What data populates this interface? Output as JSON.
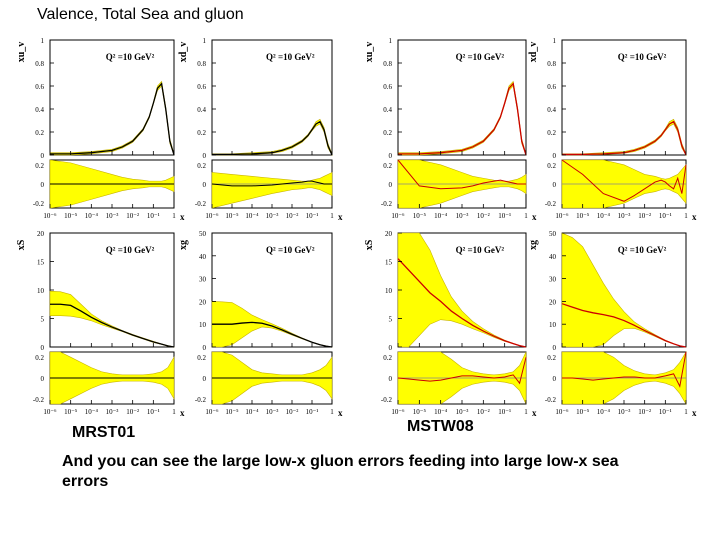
{
  "slide": {
    "title": "Valence, Total Sea and gluon",
    "label_left": "MRST01",
    "label_right": "MSTW08",
    "caption": "And you can see the large low-x gluon errors feeding into large low-x sea errors"
  },
  "colors": {
    "band": "#ffff00",
    "central_black": "#000000",
    "central_red": "#cc0000",
    "grid": "#dddddd"
  },
  "chart_data": [
    {
      "type": "line",
      "set": "MRST01",
      "panel": "xu_v",
      "ylabel": "xu_v",
      "q2_label": "Q² =10 GeV²",
      "yticks_top": [
        "0",
        "0.2",
        "0.4",
        "0.6",
        "0.8",
        "1"
      ],
      "ylim_top": [
        0,
        1
      ],
      "yticks_bottom": [
        "-0.2",
        "0",
        "0.2"
      ],
      "ylim_bottom": [
        -0.25,
        0.25
      ],
      "xticks": [
        "10⁻⁶",
        "10⁻⁵",
        "10⁻⁴",
        "10⁻³",
        "10⁻²",
        "10⁻¹",
        "1"
      ],
      "xlabel": "x",
      "xlim": [
        -6,
        0
      ],
      "x": [
        -6,
        -5,
        -4,
        -3,
        -2.5,
        -2,
        -1.5,
        -1.2,
        -1,
        -0.8,
        -0.6,
        -0.4,
        -0.2,
        0
      ],
      "y": [
        0.01,
        0.01,
        0.02,
        0.04,
        0.07,
        0.12,
        0.22,
        0.33,
        0.45,
        0.58,
        0.62,
        0.4,
        0.12,
        0.0
      ],
      "band_up": [
        0.02,
        0.02,
        0.03,
        0.05,
        0.08,
        0.13,
        0.23,
        0.34,
        0.46,
        0.6,
        0.64,
        0.42,
        0.14,
        0.01
      ],
      "band_dn": [
        0.0,
        0.0,
        0.01,
        0.03,
        0.06,
        0.11,
        0.21,
        0.32,
        0.44,
        0.56,
        0.6,
        0.38,
        0.1,
        0.0
      ],
      "ratio_up": [
        0.25,
        0.22,
        0.16,
        0.1,
        0.07,
        0.05,
        0.04,
        0.03,
        0.03,
        0.03,
        0.03,
        0.04,
        0.06,
        0.08
      ],
      "ratio_dn": [
        -0.25,
        -0.22,
        -0.16,
        -0.1,
        -0.07,
        -0.05,
        -0.04,
        -0.03,
        -0.03,
        -0.03,
        -0.03,
        -0.04,
        -0.06,
        -0.08
      ],
      "ratio_central": [
        0,
        0,
        0,
        0,
        0,
        0,
        0,
        0,
        0,
        0,
        0,
        0,
        0,
        0
      ]
    },
    {
      "type": "line",
      "set": "MRST01",
      "panel": "xd_v",
      "ylabel": "xd_v",
      "q2_label": "Q² =10 GeV²",
      "yticks_top": [
        "0",
        "0.2",
        "0.4",
        "0.6",
        "0.8",
        "1"
      ],
      "ylim_top": [
        0,
        1
      ],
      "yticks_bottom": [
        "-0.2",
        "0",
        "0.2"
      ],
      "ylim_bottom": [
        -0.25,
        0.25
      ],
      "xticks": [
        "10⁻⁶",
        "10⁻⁵",
        "10⁻⁴",
        "10⁻³",
        "10⁻²",
        "10⁻¹",
        "1"
      ],
      "xlabel": "x",
      "xlim": [
        -6,
        0
      ],
      "x": [
        -6,
        -5,
        -4,
        -3,
        -2.5,
        -2,
        -1.5,
        -1.2,
        -1,
        -0.8,
        -0.6,
        -0.4,
        -0.2,
        0
      ],
      "y": [
        0.005,
        0.005,
        0.01,
        0.02,
        0.04,
        0.07,
        0.12,
        0.17,
        0.22,
        0.27,
        0.29,
        0.22,
        0.08,
        0.0
      ],
      "band_up": [
        0.01,
        0.01,
        0.02,
        0.03,
        0.05,
        0.08,
        0.13,
        0.18,
        0.23,
        0.29,
        0.31,
        0.24,
        0.1,
        0.01
      ],
      "band_dn": [
        0.0,
        0.0,
        0.005,
        0.015,
        0.03,
        0.06,
        0.11,
        0.16,
        0.21,
        0.25,
        0.27,
        0.2,
        0.06,
        0.0
      ],
      "ratio_up": [
        0.12,
        0.1,
        0.08,
        0.06,
        0.05,
        0.04,
        0.03,
        0.03,
        0.04,
        0.05,
        0.06,
        0.08,
        0.1,
        0.12
      ],
      "ratio_dn": [
        -0.25,
        -0.2,
        -0.15,
        -0.1,
        -0.08,
        -0.06,
        -0.05,
        -0.04,
        -0.04,
        -0.05,
        -0.06,
        -0.08,
        -0.1,
        -0.12
      ],
      "ratio_central": [
        0,
        -0.02,
        -0.02,
        -0.01,
        0,
        0.01,
        0.02,
        0.03,
        0.03,
        0.02,
        0.01,
        0,
        0,
        0
      ]
    },
    {
      "type": "line",
      "set": "MSTW08",
      "panel": "xu_v",
      "ylabel": "xu_v",
      "q2_label": "Q² =10 GeV²",
      "yticks_top": [
        "0",
        "0.2",
        "0.4",
        "0.6",
        "0.8",
        "1"
      ],
      "ylim_top": [
        0,
        1
      ],
      "yticks_bottom": [
        "-0.2",
        "0",
        "0.2"
      ],
      "ylim_bottom": [
        -0.25,
        0.25
      ],
      "xticks": [
        "10⁻⁶",
        "10⁻⁵",
        "10⁻⁴",
        "10⁻³",
        "10⁻²",
        "10⁻¹",
        "1"
      ],
      "xlabel": "x",
      "xlim": [
        -6,
        0
      ],
      "x": [
        -6,
        -5,
        -4,
        -3,
        -2.5,
        -2,
        -1.5,
        -1.2,
        -1,
        -0.8,
        -0.6,
        -0.4,
        -0.2,
        0
      ],
      "y": [
        0.01,
        0.01,
        0.02,
        0.04,
        0.07,
        0.12,
        0.22,
        0.33,
        0.45,
        0.58,
        0.62,
        0.4,
        0.12,
        0.0
      ],
      "band_up": [
        0.02,
        0.02,
        0.03,
        0.05,
        0.08,
        0.13,
        0.23,
        0.34,
        0.46,
        0.6,
        0.64,
        0.42,
        0.14,
        0.01
      ],
      "band_dn": [
        0.0,
        0.0,
        0.01,
        0.03,
        0.06,
        0.11,
        0.21,
        0.32,
        0.44,
        0.56,
        0.6,
        0.38,
        0.1,
        0.0
      ],
      "ratio_up": [
        0.25,
        0.25,
        0.2,
        0.12,
        0.08,
        0.06,
        0.04,
        0.03,
        0.03,
        0.03,
        0.04,
        0.05,
        0.07,
        0.1
      ],
      "ratio_dn": [
        -0.25,
        -0.25,
        -0.2,
        -0.12,
        -0.08,
        -0.06,
        -0.04,
        -0.03,
        -0.03,
        -0.03,
        -0.04,
        -0.05,
        -0.07,
        -0.1
      ],
      "ratio_central": [
        0.25,
        -0.02,
        -0.05,
        -0.04,
        -0.02,
        0.01,
        0.03,
        0.04,
        0.03,
        0.02,
        0.01,
        0,
        0,
        0
      ]
    },
    {
      "type": "line",
      "set": "MSTW08",
      "panel": "xd_v",
      "ylabel": "xd_v",
      "q2_label": "Q² =10 GeV²",
      "yticks_top": [
        "0",
        "0.2",
        "0.4",
        "0.6",
        "0.8",
        "1"
      ],
      "ylim_top": [
        0,
        1
      ],
      "yticks_bottom": [
        "-0.2",
        "0",
        "0.2"
      ],
      "ylim_bottom": [
        -0.25,
        0.25
      ],
      "xticks": [
        "10⁻⁶",
        "10⁻⁵",
        "10⁻⁴",
        "10⁻³",
        "10⁻²",
        "10⁻¹",
        "1"
      ],
      "xlabel": "x",
      "xlim": [
        -6,
        0
      ],
      "x": [
        -6,
        -5,
        -4,
        -3,
        -2.5,
        -2,
        -1.5,
        -1.2,
        -1,
        -0.8,
        -0.6,
        -0.4,
        -0.2,
        0
      ],
      "y": [
        0.005,
        0.005,
        0.01,
        0.02,
        0.04,
        0.07,
        0.12,
        0.17,
        0.22,
        0.27,
        0.29,
        0.22,
        0.08,
        0.0
      ],
      "band_up": [
        0.01,
        0.01,
        0.02,
        0.03,
        0.05,
        0.08,
        0.13,
        0.18,
        0.23,
        0.29,
        0.31,
        0.24,
        0.1,
        0.01
      ],
      "band_dn": [
        0.0,
        0.0,
        0.005,
        0.015,
        0.03,
        0.06,
        0.11,
        0.16,
        0.21,
        0.25,
        0.27,
        0.2,
        0.06,
        0.0
      ],
      "ratio_up": [
        0.25,
        0.25,
        0.25,
        0.2,
        0.15,
        0.1,
        0.08,
        0.06,
        0.05,
        0.06,
        0.08,
        0.1,
        0.15,
        0.2
      ],
      "ratio_dn": [
        -0.25,
        -0.25,
        -0.25,
        -0.2,
        -0.15,
        -0.1,
        -0.08,
        -0.06,
        -0.05,
        -0.06,
        -0.08,
        -0.1,
        -0.15,
        -0.2
      ],
      "ratio_central": [
        0.25,
        0.1,
        -0.1,
        -0.18,
        -0.12,
        -0.05,
        0.02,
        0.04,
        0.02,
        -0.02,
        -0.05,
        0.06,
        -0.1,
        0.2
      ]
    },
    {
      "type": "line",
      "set": "MRST01",
      "panel": "xS",
      "ylabel": "xS",
      "q2_label": "Q² =10 GeV²",
      "yticks_top": [
        "0",
        "5",
        "10",
        "15",
        "20"
      ],
      "ylim_top": [
        0,
        20
      ],
      "yticks_bottom": [
        "-0.2",
        "0",
        "0.2"
      ],
      "ylim_bottom": [
        -0.25,
        0.25
      ],
      "xticks": [
        "10⁻⁶",
        "10⁻⁵",
        "10⁻⁴",
        "10⁻³",
        "10⁻²",
        "10⁻¹",
        "1"
      ],
      "xlabel": "x",
      "xlim": [
        -6,
        0
      ],
      "x": [
        -6,
        -5.5,
        -5,
        -4.5,
        -4,
        -3.5,
        -3,
        -2.5,
        -2,
        -1.5,
        -1,
        -0.6,
        -0.3,
        0
      ],
      "y": [
        7.5,
        7.5,
        7.3,
        6.3,
        5.2,
        4.3,
        3.5,
        2.8,
        2.1,
        1.5,
        0.9,
        0.5,
        0.2,
        0
      ],
      "band_up": [
        9.8,
        9.7,
        9.2,
        7.5,
        5.8,
        4.6,
        3.7,
        2.9,
        2.2,
        1.6,
        1.0,
        0.55,
        0.25,
        0.02
      ],
      "band_dn": [
        5.5,
        5.5,
        5.4,
        5.1,
        4.6,
        3.9,
        3.3,
        2.7,
        2.0,
        1.4,
        0.8,
        0.45,
        0.15,
        0
      ],
      "ratio_up": [
        0.25,
        0.25,
        0.2,
        0.15,
        0.1,
        0.06,
        0.04,
        0.03,
        0.03,
        0.03,
        0.04,
        0.06,
        0.1,
        0.2
      ],
      "ratio_dn": [
        -0.25,
        -0.25,
        -0.2,
        -0.15,
        -0.1,
        -0.06,
        -0.04,
        -0.03,
        -0.03,
        -0.03,
        -0.04,
        -0.06,
        -0.1,
        -0.2
      ],
      "ratio_central": [
        0,
        0,
        0,
        0,
        0,
        0,
        0,
        0,
        0,
        0,
        0,
        0,
        0,
        0
      ]
    },
    {
      "type": "line",
      "set": "MRST01",
      "panel": "xg",
      "ylabel": "xg",
      "q2_label": "Q² =10 GeV²",
      "yticks_top": [
        "0",
        "10",
        "20",
        "30",
        "40",
        "50"
      ],
      "ylim_top": [
        0,
        50
      ],
      "yticks_bottom": [
        "-0.2",
        "0",
        "0.2"
      ],
      "ylim_bottom": [
        -0.25,
        0.25
      ],
      "xticks": [
        "10⁻⁶",
        "10⁻⁵",
        "10⁻⁴",
        "10⁻³",
        "10⁻²",
        "10⁻¹",
        "1"
      ],
      "xlabel": "x",
      "xlim": [
        -6,
        0
      ],
      "x": [
        -6,
        -5.5,
        -5,
        -4.5,
        -4,
        -3.5,
        -3,
        -2.5,
        -2,
        -1.5,
        -1,
        -0.6,
        -0.3,
        0
      ],
      "y": [
        10,
        10,
        10,
        10.5,
        10.8,
        10.4,
        9.2,
        7.5,
        5.6,
        3.8,
        2.1,
        1.0,
        0.4,
        0
      ],
      "band_up": [
        20,
        19.8,
        19.5,
        17,
        14,
        12,
        10.2,
        8.2,
        6,
        4,
        2.2,
        1.1,
        0.45,
        0.02
      ],
      "band_dn": [
        0,
        0,
        1,
        4,
        7,
        8.8,
        8.3,
        6.9,
        5.2,
        3.6,
        2.0,
        0.9,
        0.35,
        0
      ],
      "ratio_up": [
        0.25,
        0.25,
        0.22,
        0.15,
        0.08,
        0.05,
        0.04,
        0.03,
        0.03,
        0.03,
        0.05,
        0.08,
        0.12,
        0.2
      ],
      "ratio_dn": [
        -0.25,
        -0.25,
        -0.22,
        -0.15,
        -0.08,
        -0.05,
        -0.04,
        -0.03,
        -0.03,
        -0.03,
        -0.05,
        -0.08,
        -0.12,
        -0.2
      ],
      "ratio_central": [
        0,
        0,
        0,
        0,
        0,
        0,
        0,
        0,
        0,
        0,
        0,
        0,
        0,
        0
      ]
    },
    {
      "type": "line",
      "set": "MSTW08",
      "panel": "xS",
      "ylabel": "xS",
      "q2_label": "Q² =10 GeV²",
      "yticks_top": [
        "0",
        "5",
        "10",
        "15",
        "20"
      ],
      "ylim_top": [
        0,
        20
      ],
      "yticks_bottom": [
        "-0.2",
        "0",
        "0.2"
      ],
      "ylim_bottom": [
        -0.25,
        0.25
      ],
      "xticks": [
        "10⁻⁶",
        "10⁻⁵",
        "10⁻⁴",
        "10⁻³",
        "10⁻²",
        "10⁻¹",
        "1"
      ],
      "xlabel": "x",
      "xlim": [
        -6,
        0
      ],
      "x": [
        -6,
        -5.5,
        -5,
        -4.5,
        -4,
        -3.5,
        -3,
        -2.5,
        -2,
        -1.5,
        -1,
        -0.6,
        -0.3,
        0
      ],
      "y": [
        15.5,
        13.5,
        11.5,
        9.5,
        8,
        6.3,
        5,
        3.8,
        2.8,
        1.9,
        1.1,
        0.6,
        0.25,
        0
      ],
      "band_up": [
        20,
        20,
        20,
        17,
        12.5,
        8.8,
        6.3,
        4.5,
        3.2,
        2.1,
        1.2,
        0.65,
        0.28,
        0.02
      ],
      "band_dn": [
        0,
        0,
        2,
        4,
        4.8,
        4.6,
        4.0,
        3.2,
        2.5,
        1.7,
        1.0,
        0.55,
        0.22,
        0
      ],
      "ratio_up": [
        0.25,
        0.25,
        0.25,
        0.25,
        0.25,
        0.18,
        0.1,
        0.06,
        0.04,
        0.03,
        0.04,
        0.06,
        0.12,
        0.25
      ],
      "ratio_dn": [
        -0.25,
        -0.25,
        -0.25,
        -0.25,
        -0.25,
        -0.18,
        -0.1,
        -0.06,
        -0.04,
        -0.03,
        -0.04,
        -0.06,
        -0.12,
        -0.25
      ],
      "ratio_central": [
        0,
        -0.01,
        -0.02,
        -0.03,
        -0.02,
        0,
        0.02,
        0.02,
        0.01,
        0,
        0.01,
        0.03,
        -0.05,
        0.2
      ]
    },
    {
      "type": "line",
      "set": "MSTW08",
      "panel": "xg",
      "ylabel": "xg",
      "q2_label": "Q² =10 GeV²",
      "yticks_top": [
        "0",
        "10",
        "20",
        "30",
        "40",
        "50"
      ],
      "ylim_top": [
        0,
        50
      ],
      "yticks_bottom": [
        "-0.2",
        "0",
        "0.2"
      ],
      "ylim_bottom": [
        -0.25,
        0.25
      ],
      "xticks": [
        "10⁻⁶",
        "10⁻⁵",
        "10⁻⁴",
        "10⁻³",
        "10⁻²",
        "10⁻¹",
        "1"
      ],
      "xlabel": "x",
      "xlim": [
        -6,
        0
      ],
      "x": [
        -6,
        -5.5,
        -5,
        -4.5,
        -4,
        -3.5,
        -3,
        -2.5,
        -2,
        -1.5,
        -1,
        -0.6,
        -0.3,
        0
      ],
      "y": [
        19,
        17.5,
        16,
        15,
        14.2,
        13.2,
        11.6,
        9.5,
        7.2,
        5,
        2.8,
        1.4,
        0.5,
        0
      ],
      "band_up": [
        50,
        48,
        44,
        36,
        28,
        21,
        15.5,
        11,
        8,
        5.4,
        3.0,
        1.5,
        0.55,
        0.02
      ],
      "band_dn": [
        0,
        0,
        0,
        0,
        1,
        5,
        8,
        8.2,
        6.6,
        4.6,
        2.6,
        1.3,
        0.45,
        0
      ],
      "ratio_up": [
        0.25,
        0.25,
        0.25,
        0.25,
        0.25,
        0.2,
        0.12,
        0.07,
        0.04,
        0.03,
        0.05,
        0.08,
        0.15,
        0.25
      ],
      "ratio_dn": [
        -0.25,
        -0.25,
        -0.25,
        -0.25,
        -0.25,
        -0.2,
        -0.12,
        -0.07,
        -0.04,
        -0.03,
        -0.05,
        -0.08,
        -0.15,
        -0.25
      ],
      "ratio_central": [
        0,
        0,
        -0.01,
        -0.02,
        -0.01,
        0,
        0.01,
        0.01,
        0,
        0,
        0.02,
        0.04,
        -0.08,
        0.25
      ]
    }
  ]
}
